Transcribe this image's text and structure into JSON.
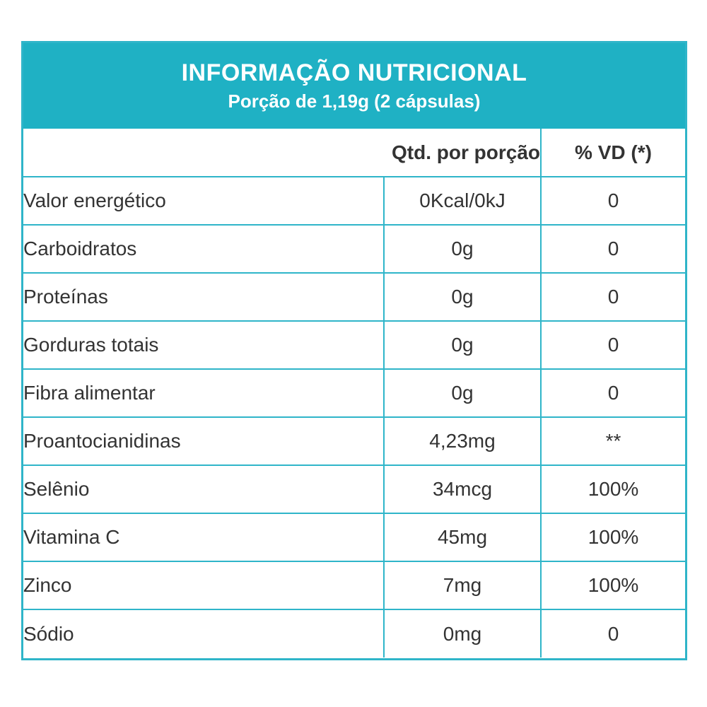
{
  "title": "INFORMAÇÃO NUTRICIONAL",
  "subtitle": "Porção de 1,19g (2 cápsulas)",
  "headers": {
    "name": "",
    "qty": "Qtd. por porção",
    "vd": "% VD (*)"
  },
  "rows": [
    {
      "name": "Valor energético",
      "qty": "0Kcal/0kJ",
      "vd": "0"
    },
    {
      "name": "Carboidratos",
      "qty": "0g",
      "vd": "0"
    },
    {
      "name": "Proteínas",
      "qty": "0g",
      "vd": "0"
    },
    {
      "name": "Gorduras totais",
      "qty": "0g",
      "vd": "0"
    },
    {
      "name": "Fibra alimentar",
      "qty": "0g",
      "vd": "0"
    },
    {
      "name": "Proantocianidinas",
      "qty": "4,23mg",
      "vd": "**"
    },
    {
      "name": "Selênio",
      "qty": "34mcg",
      "vd": "100%"
    },
    {
      "name": "Vitamina C",
      "qty": "45mg",
      "vd": "100%"
    },
    {
      "name": "Zinco",
      "qty": "7mg",
      "vd": "100%"
    },
    {
      "name": "Sódio",
      "qty": "0mg",
      "vd": "0"
    }
  ],
  "colors": {
    "banner": "#1fb1c4",
    "border": "#2fb5c9",
    "text": "#333333"
  }
}
